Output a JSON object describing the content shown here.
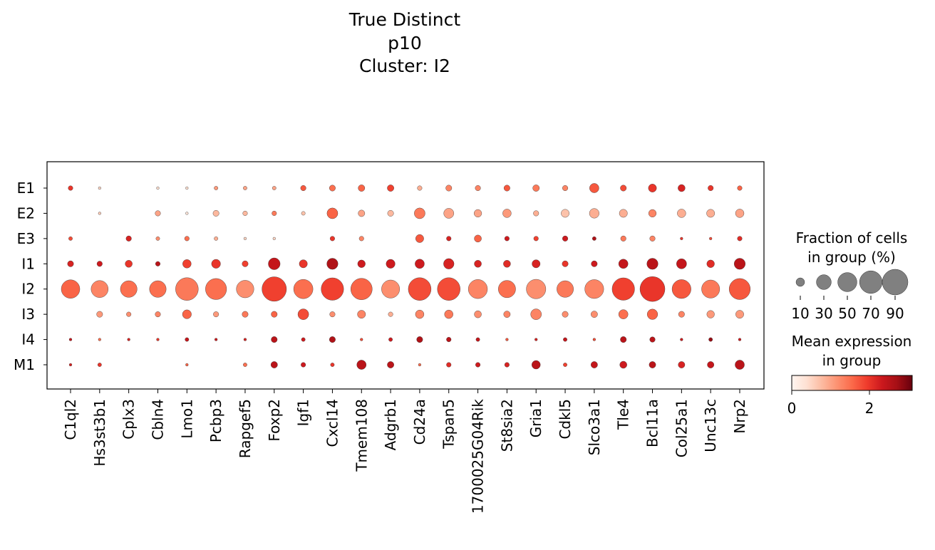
{
  "chart_data": {
    "type": "dotplot",
    "title": [
      "True Distinct",
      "p10",
      "Cluster: I2"
    ],
    "genes": [
      "C1ql2",
      "Hs3st3b1",
      "Cplx3",
      "Cbln4",
      "Lmo1",
      "Pcbp3",
      "Rapgef5",
      "Foxp2",
      "Igf1",
      "Cxcl14",
      "Tmem108",
      "Adgrb1",
      "Cd24a",
      "Tspan5",
      "1700025G04Rik",
      "St8sia2",
      "Gria1",
      "Cdkl5",
      "Slco3a1",
      "Tle4",
      "Bcl11a",
      "Col25a1",
      "Unc13c",
      "Nrp2"
    ],
    "groups": [
      "E1",
      "E2",
      "E3",
      "I1",
      "I2",
      "I3",
      "I4",
      "M1"
    ],
    "fraction_pct": {
      "E1": [
        3,
        1,
        0,
        1,
        1,
        2,
        2,
        2,
        4,
        5,
        6,
        6,
        3,
        5,
        4,
        5,
        6,
        4,
        12,
        5,
        9,
        7,
        4,
        3
      ],
      "E2": [
        0,
        1,
        0,
        4,
        1,
        5,
        3,
        3,
        2,
        16,
        6,
        5,
        16,
        14,
        8,
        10,
        4,
        9,
        13,
        9,
        8,
        10,
        9,
        10
      ],
      "E3": [
        2,
        0,
        4,
        2,
        3,
        2,
        1,
        1,
        0,
        3,
        3,
        0,
        9,
        3,
        7,
        3,
        3,
        4,
        2,
        4,
        4,
        1,
        1,
        3
      ],
      "I1": [
        5,
        4,
        7,
        3,
        10,
        11,
        5,
        19,
        9,
        17,
        8,
        11,
        12,
        15,
        7,
        7,
        9,
        5,
        5,
        12,
        17,
        14,
        8,
        17
      ],
      "I2": [
        47,
        40,
        38,
        38,
        71,
        61,
        42,
        82,
        51,
        69,
        63,
        45,
        71,
        71,
        50,
        41,
        52,
        38,
        49,
        69,
        85,
        49,
        45,
        61
      ],
      "I3": [
        0,
        5,
        3,
        4,
        11,
        4,
        5,
        5,
        16,
        4,
        9,
        3,
        10,
        10,
        7,
        6,
        16,
        5,
        6,
        12,
        15,
        5,
        8,
        9
      ],
      "I4": [
        1,
        1,
        1,
        1,
        2,
        1,
        1,
        5,
        2,
        5,
        1,
        2,
        5,
        3,
        2,
        1,
        1,
        2,
        1,
        5,
        4,
        1,
        2,
        1
      ],
      "M1": [
        1,
        2,
        0,
        0,
        1,
        0,
        2,
        6,
        3,
        2,
        12,
        6,
        1,
        3,
        3,
        3,
        10,
        2,
        6,
        7,
        6,
        6,
        6,
        12
      ]
    },
    "mean_expression": {
      "E1": [
        2.0,
        0.5,
        0,
        0.4,
        0.4,
        1.1,
        1.0,
        1.0,
        1.7,
        1.5,
        1.6,
        1.9,
        0.9,
        1.3,
        1.3,
        1.7,
        1.4,
        1.3,
        1.7,
        1.8,
        2.0,
        2.2,
        2.0,
        1.6
      ],
      "E2": [
        0,
        0.6,
        0,
        1.0,
        0.3,
        0.8,
        0.8,
        1.4,
        0.7,
        1.6,
        1.0,
        0.8,
        1.4,
        1.0,
        1.0,
        1.1,
        0.9,
        0.7,
        0.9,
        0.9,
        1.3,
        0.9,
        0.9,
        1.0
      ],
      "E3": [
        1.8,
        0,
        2.2,
        1.2,
        1.5,
        0.9,
        0.5,
        0.5,
        0,
        2.0,
        1.3,
        0,
        1.7,
        2.2,
        1.6,
        2.3,
        1.9,
        2.3,
        2.6,
        1.4,
        1.3,
        2.0,
        1.8,
        2.1
      ],
      "I1": [
        2.2,
        2.3,
        2.0,
        2.5,
        1.9,
        2.0,
        1.9,
        2.4,
        2.0,
        2.6,
        2.3,
        2.3,
        2.3,
        2.2,
        2.2,
        2.1,
        2.2,
        2.0,
        2.3,
        2.4,
        2.5,
        2.4,
        2.1,
        2.5
      ],
      "I2": [
        1.6,
        1.3,
        1.5,
        1.5,
        1.4,
        1.5,
        1.2,
        1.9,
        1.5,
        1.9,
        1.6,
        1.2,
        1.8,
        1.8,
        1.3,
        1.5,
        1.2,
        1.4,
        1.3,
        1.9,
        2.0,
        1.7,
        1.4,
        1.7
      ],
      "I3": [
        0,
        1.1,
        1.2,
        1.3,
        1.6,
        1.1,
        1.4,
        1.6,
        1.8,
        1.2,
        1.3,
        0.9,
        1.3,
        1.4,
        1.2,
        1.3,
        1.3,
        1.2,
        1.2,
        1.5,
        1.6,
        1.3,
        1.1,
        1.1
      ],
      "I4": [
        2.4,
        1.5,
        2.2,
        2.0,
        2.4,
        2.3,
        2.2,
        2.5,
        2.3,
        2.6,
        1.8,
        2.3,
        2.6,
        2.5,
        2.4,
        1.7,
        2.2,
        2.4,
        1.8,
        2.5,
        2.5,
        2.3,
        2.8,
        2.3
      ],
      "M1": [
        2.2,
        2.0,
        1.3,
        0.9,
        1.6,
        1.3,
        1.5,
        2.5,
        2.3,
        2.0,
        2.5,
        2.5,
        1.5,
        2.1,
        2.3,
        2.2,
        2.5,
        1.9,
        2.4,
        2.3,
        2.5,
        2.2,
        2.4,
        2.5
      ]
    },
    "size_legend": {
      "title": [
        "Fraction of cells",
        "in group (%)"
      ],
      "values": [
        10,
        30,
        50,
        70,
        90
      ],
      "labels": [
        "10",
        "30",
        "50",
        "70",
        "90"
      ]
    },
    "color_legend": {
      "title": [
        "Mean expression",
        "in group"
      ],
      "range": [
        0,
        3.1
      ],
      "ticks": [
        0,
        2
      ],
      "tick_labels": [
        "0",
        "2"
      ],
      "colormap": "Reds",
      "stops": [
        "#fff5f0",
        "#fee0d2",
        "#fcbba1",
        "#fc9272",
        "#fb6a4a",
        "#ef3b2c",
        "#cb181d",
        "#a50f15",
        "#67000d"
      ]
    },
    "size_scale": {
      "min_pct": 0,
      "max_pct": 90
    }
  }
}
